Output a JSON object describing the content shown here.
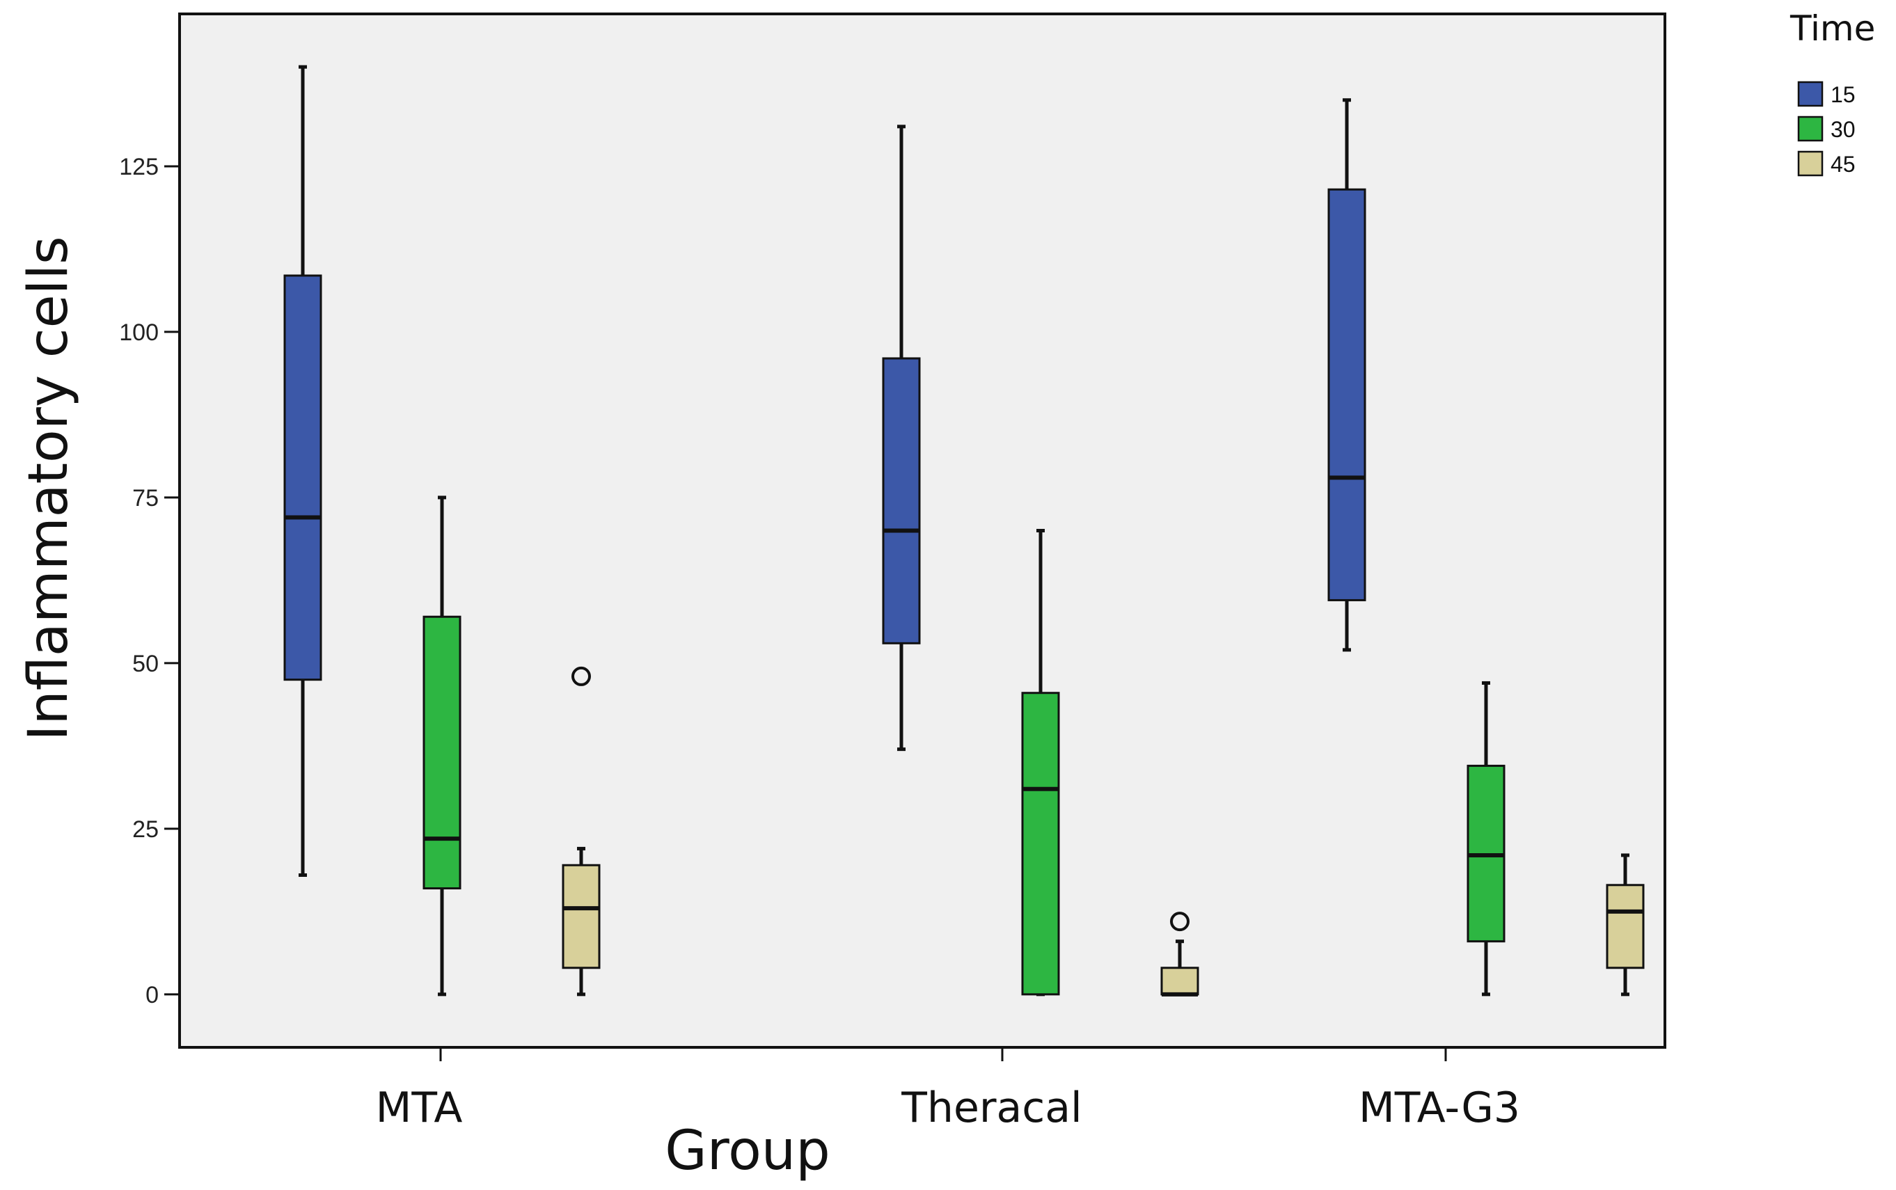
{
  "chart_data": {
    "type": "boxplot",
    "xlabel": "Group",
    "ylabel": "Inflammatory cells",
    "ylim": [
      -8,
      148
    ],
    "yticks": [
      0,
      25,
      50,
      75,
      100,
      125
    ],
    "categories": [
      "MTA",
      "Theracal",
      "MTA-G3"
    ],
    "legend": {
      "title": "Time",
      "position": "top-right",
      "entries": [
        "15",
        "30",
        "45"
      ]
    },
    "series": [
      {
        "name": "15",
        "color": "#3c58a8",
        "boxes": [
          {
            "min": 18,
            "q1": 47.5,
            "median": 72,
            "q3": 108.5,
            "max": 140,
            "outliers": []
          },
          {
            "min": 37,
            "q1": 53,
            "median": 70,
            "q3": 96,
            "max": 131,
            "outliers": []
          },
          {
            "min": 52,
            "q1": 59.5,
            "median": 78,
            "q3": 121.5,
            "max": 135,
            "outliers": []
          }
        ]
      },
      {
        "name": "30",
        "color": "#2db642",
        "boxes": [
          {
            "min": 0,
            "q1": 16,
            "median": 23.5,
            "q3": 57,
            "max": 75,
            "outliers": []
          },
          {
            "min": 0,
            "q1": 0,
            "median": 31,
            "q3": 45.5,
            "max": 70,
            "outliers": []
          },
          {
            "min": 0,
            "q1": 8,
            "median": 21,
            "q3": 34.5,
            "max": 47,
            "outliers": []
          }
        ]
      },
      {
        "name": "45",
        "color": "#d8d09a",
        "boxes": [
          {
            "min": 0,
            "q1": 4,
            "median": 13,
            "q3": 19.5,
            "max": 22,
            "outliers": [
              48
            ]
          },
          {
            "min": 0,
            "q1": 0,
            "median": 0,
            "q3": 4,
            "max": 8,
            "outliers": [
              11
            ]
          },
          {
            "min": 0,
            "q1": 4,
            "median": 12.5,
            "q3": 16.5,
            "max": 21,
            "outliers": []
          }
        ]
      }
    ]
  }
}
